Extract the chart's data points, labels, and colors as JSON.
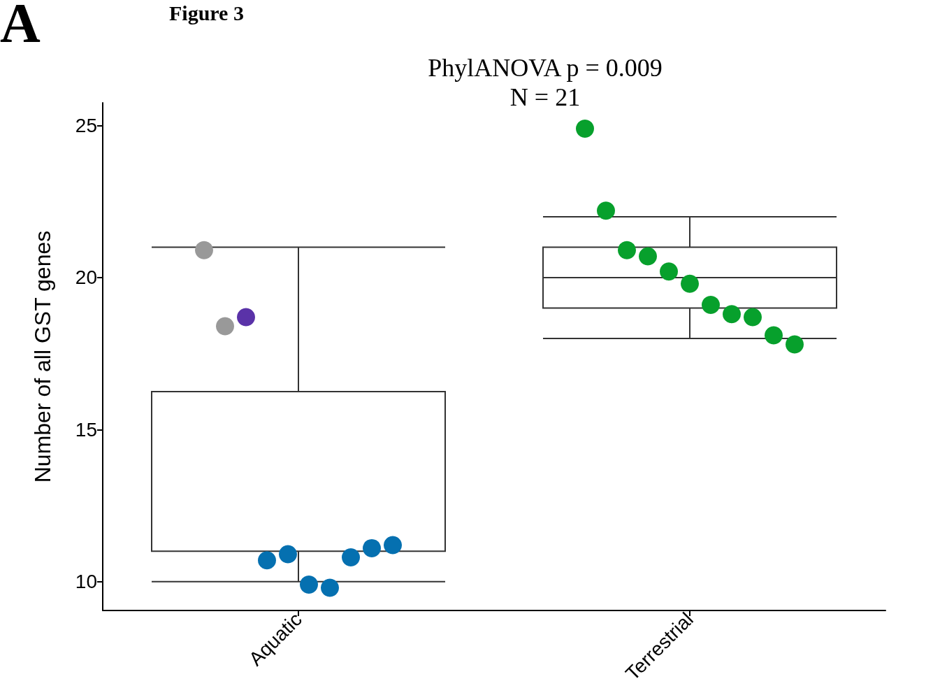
{
  "chart_data": {
    "type": "box",
    "title": "PhylANOVA p = 0.009",
    "subtitle": "N = 21",
    "ylabel": "Number of all GST genes",
    "annotations": [
      "A",
      "Figure 3"
    ],
    "categories": [
      "Aquatic",
      "Terrestrial"
    ],
    "boxes": [
      {
        "low": 10,
        "q1": 11,
        "median": 11,
        "q3": 16.25,
        "high": 21
      },
      {
        "low": 18,
        "q1": 19,
        "median": 20,
        "q3": 21,
        "high": 22
      }
    ],
    "ylim": [
      9.05,
      25.75
    ],
    "yticks": [
      10,
      15,
      20,
      25
    ],
    "marker": "circle",
    "series": [
      {
        "type": "scatter",
        "color": "#999999",
        "x": [
          "Aquatic",
          "Aquatic"
        ],
        "values": [
          20.9,
          18.4
        ]
      },
      {
        "type": "scatter",
        "color": "#5a32a8",
        "x": [
          "Aquatic"
        ],
        "values": [
          18.7
        ]
      },
      {
        "type": "scatter",
        "color": "#0570b0",
        "x": [
          "Aquatic",
          "Aquatic",
          "Aquatic",
          "Aquatic",
          "Aquatic",
          "Aquatic",
          "Aquatic"
        ],
        "values": [
          10.7,
          10.9,
          9.9,
          9.8,
          10.8,
          11.1,
          11.2
        ]
      },
      {
        "type": "scatter",
        "color": "#07a02c",
        "x": [
          "Terrestrial",
          "Terrestrial",
          "Terrestrial",
          "Terrestrial",
          "Terrestrial",
          "Terrestrial",
          "Terrestrial",
          "Terrestrial",
          "Terrestrial",
          "Terrestrial",
          "Terrestrial"
        ],
        "values": [
          24.9,
          22.2,
          20.9,
          20.7,
          20.2,
          19.8,
          19.1,
          18.8,
          18.7,
          18.1,
          17.8
        ]
      }
    ]
  }
}
